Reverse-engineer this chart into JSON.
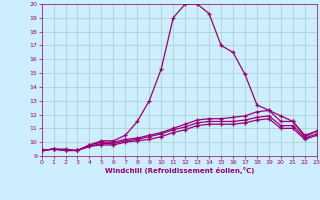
{
  "xlabel": "Windchill (Refroidissement éolien,°C)",
  "bg_color": "#cceeff",
  "line_color": "#990077",
  "grid_color": "#aacccc",
  "xmin": 0,
  "xmax": 23,
  "ymin": 9,
  "ymax": 20,
  "line1_x": [
    0,
    1,
    2,
    3,
    4,
    5,
    6,
    7,
    8,
    9,
    10,
    11,
    12,
    13,
    14,
    15,
    16,
    17,
    18,
    19,
    20,
    21,
    22,
    23
  ],
  "line1_y": [
    9.4,
    9.5,
    9.5,
    9.4,
    9.8,
    10.1,
    10.1,
    10.5,
    11.5,
    13.0,
    15.3,
    19.0,
    20.0,
    20.0,
    19.3,
    17.0,
    16.5,
    14.9,
    12.7,
    12.3,
    11.9,
    11.5,
    10.4,
    10.8
  ],
  "line2_x": [
    0,
    1,
    2,
    3,
    4,
    5,
    6,
    7,
    8,
    9,
    10,
    11,
    12,
    13,
    14,
    15,
    16,
    17,
    18,
    19,
    20,
    21,
    22,
    23
  ],
  "line2_y": [
    9.4,
    9.5,
    9.4,
    9.4,
    9.8,
    10.0,
    10.0,
    10.2,
    10.3,
    10.5,
    10.7,
    11.0,
    11.3,
    11.6,
    11.7,
    11.7,
    11.8,
    11.9,
    12.2,
    12.3,
    11.5,
    11.5,
    10.5,
    10.8
  ],
  "line3_x": [
    0,
    1,
    2,
    3,
    4,
    5,
    6,
    7,
    8,
    9,
    10,
    11,
    12,
    13,
    14,
    15,
    16,
    17,
    18,
    19,
    20,
    21,
    22,
    23
  ],
  "line3_y": [
    9.4,
    9.5,
    9.4,
    9.4,
    9.7,
    9.9,
    9.9,
    10.1,
    10.2,
    10.4,
    10.6,
    10.9,
    11.1,
    11.4,
    11.5,
    11.5,
    11.5,
    11.6,
    11.8,
    11.9,
    11.2,
    11.2,
    10.3,
    10.6
  ],
  "line4_x": [
    0,
    1,
    2,
    3,
    4,
    5,
    6,
    7,
    8,
    9,
    10,
    11,
    12,
    13,
    14,
    15,
    16,
    17,
    18,
    19,
    20,
    21,
    22,
    23
  ],
  "line4_y": [
    9.4,
    9.5,
    9.4,
    9.4,
    9.7,
    9.8,
    9.8,
    10.0,
    10.1,
    10.2,
    10.4,
    10.7,
    10.9,
    11.2,
    11.3,
    11.3,
    11.3,
    11.4,
    11.6,
    11.7,
    11.0,
    11.0,
    10.2,
    10.5
  ]
}
